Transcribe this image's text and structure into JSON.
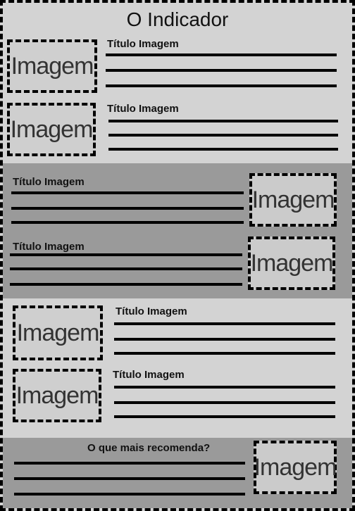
{
  "title": "O Indicador",
  "image_label": "Imagem",
  "item_title": "Título Imagem",
  "recommend_label": "O que mais recomenda?"
}
